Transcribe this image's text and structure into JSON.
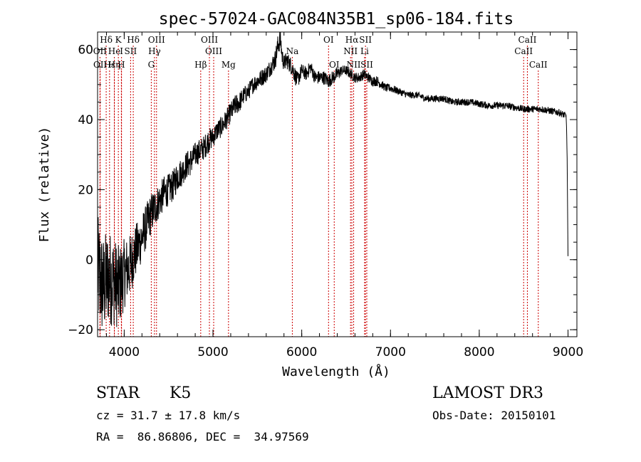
{
  "chart_data": {
    "type": "line",
    "title": "spec-57024-GAC084N35B1_sp06-184.fits",
    "xlabel": "Wavelength (Å)",
    "ylabel": "Flux (relative)",
    "xlim": [
      3700,
      9100
    ],
    "ylim": [
      -22,
      65
    ],
    "xticks": [
      4000,
      5000,
      6000,
      7000,
      8000,
      9000
    ],
    "yticks": [
      -20,
      0,
      20,
      40,
      60
    ],
    "line_color": "#000000",
    "marker_color": "#cc0000",
    "spectrum": {
      "x": [
        3700,
        3760,
        3820,
        3880,
        3940,
        4000,
        4060,
        4120,
        4180,
        4240,
        4300,
        4350,
        4400,
        4450,
        4500,
        4550,
        4600,
        4650,
        4700,
        4750,
        4800,
        4850,
        4900,
        4950,
        5000,
        5050,
        5100,
        5150,
        5200,
        5250,
        5300,
        5350,
        5400,
        5450,
        5500,
        5550,
        5600,
        5650,
        5700,
        5730,
        5760,
        5780,
        5800,
        5830,
        5860,
        5890,
        5920,
        5950,
        6000,
        6050,
        6100,
        6150,
        6200,
        6250,
        6300,
        6350,
        6400,
        6450,
        6500,
        6550,
        6600,
        6650,
        6700,
        6750,
        6800,
        6850,
        6900,
        6950,
        7000,
        7100,
        7200,
        7300,
        7400,
        7500,
        7600,
        7700,
        7800,
        7900,
        8000,
        8100,
        8200,
        8300,
        8400,
        8500,
        8600,
        8700,
        8800,
        8900,
        8980,
        8990,
        9000
      ],
      "y": [
        -3,
        -8,
        -5,
        -6,
        -8,
        -4,
        -2,
        2,
        5,
        9,
        13,
        15,
        17,
        19,
        20,
        21,
        24,
        25,
        27,
        28,
        30,
        31,
        32,
        34,
        35,
        37,
        38,
        40,
        42,
        44,
        45,
        47,
        48,
        50,
        51,
        52,
        53,
        55,
        57,
        61,
        63,
        58,
        56,
        57,
        56,
        55,
        53,
        51,
        54,
        53,
        55,
        52,
        52,
        52,
        51,
        52,
        53,
        54,
        54,
        53,
        52,
        52,
        53,
        52,
        51,
        51,
        50,
        49,
        49,
        48,
        47,
        47,
        46,
        46,
        46,
        45,
        45,
        45,
        44.5,
        44,
        44,
        44,
        43.5,
        43,
        43,
        43,
        42.5,
        42,
        41,
        29,
        1
      ],
      "noise": [
        16,
        15,
        14,
        13,
        12,
        10,
        9,
        8,
        7,
        6.5,
        6,
        5.5,
        5,
        5,
        4.5,
        4.5,
        4.5,
        4,
        4,
        4,
        3.5,
        3.5,
        3.5,
        3.5,
        3,
        3,
        3,
        3,
        3,
        3,
        3,
        2.5,
        2.5,
        2.5,
        2.5,
        2.5,
        2.5,
        2.5,
        3,
        3,
        3,
        2.5,
        2.5,
        2.5,
        2.5,
        2.5,
        2.5,
        2.5,
        2,
        2,
        2,
        2,
        2,
        2,
        2,
        2,
        2,
        1.5,
        1.5,
        1.5,
        1.5,
        1.5,
        1.5,
        1.5,
        1.5,
        1.5,
        1.2,
        1.2,
        1.2,
        1,
        1,
        1,
        1,
        1,
        1,
        1,
        1,
        1,
        1,
        1,
        1,
        1,
        1,
        1,
        1,
        1,
        1,
        1,
        1,
        0,
        0
      ]
    },
    "lines": [
      {
        "label": "Hδ",
        "wavelength": 3797,
        "row": 0
      },
      {
        "label": "OII",
        "wavelength": 3727,
        "row": 1
      },
      {
        "label": "OII",
        "wavelength": 3729,
        "row": 2
      },
      {
        "label": "Hε",
        "wavelength": 3835,
        "row": 2
      },
      {
        "label": "He",
        "wavelength": 3889,
        "row": 1
      },
      {
        "label": "Hη",
        "wavelength": 3889,
        "row": 2
      },
      {
        "label": "K",
        "wavelength": 3934,
        "row": 0
      },
      {
        "label": "H",
        "wavelength": 3968,
        "row": 2
      },
      {
        "label": "I",
        "wavelength": 3970,
        "row": 1
      },
      {
        "label": "SII",
        "wavelength": 4072,
        "row": 1
      },
      {
        "label": "Hδ",
        "wavelength": 4102,
        "row": 0
      },
      {
        "label": "OIII",
        "wavelength": 4364,
        "row": 0
      },
      {
        "label": "Hγ",
        "wavelength": 4341,
        "row": 1
      },
      {
        "label": "G",
        "wavelength": 4305,
        "row": 2
      },
      {
        "label": "OIII",
        "wavelength": 4960,
        "row": 0
      },
      {
        "label": "OIII",
        "wavelength": 5008,
        "row": 1
      },
      {
        "label": "Hβ",
        "wavelength": 4862,
        "row": 2
      },
      {
        "label": "Mg",
        "wavelength": 5175,
        "row": 2
      },
      {
        "label": "Na",
        "wavelength": 5894,
        "row": 1
      },
      {
        "label": "OI",
        "wavelength": 6302,
        "row": 0
      },
      {
        "label": "OI",
        "wavelength": 6366,
        "row": 2
      },
      {
        "label": "Hα",
        "wavelength": 6565,
        "row": 0
      },
      {
        "label": "NII",
        "wavelength": 6550,
        "row": 1
      },
      {
        "label": "NII",
        "wavelength": 6585,
        "row": 2
      },
      {
        "label": "SII",
        "wavelength": 6718,
        "row": 0
      },
      {
        "label": "Li",
        "wavelength": 6708,
        "row": 1
      },
      {
        "label": "SII",
        "wavelength": 6733,
        "row": 2
      },
      {
        "label": "CaII",
        "wavelength": 8542,
        "row": 0
      },
      {
        "label": "CaII",
        "wavelength": 8500,
        "row": 1
      },
      {
        "label": "CaII",
        "wavelength": 8665,
        "row": 2
      }
    ]
  },
  "info": {
    "object_type": "STAR",
    "subclass": "K5",
    "survey": "LAMOST DR3",
    "redshift": "cz = 31.7 ± 17.8 km/s",
    "obs_date": "Obs-Date: 20150101",
    "coords": "RA =  86.86806, DEC =  34.97569"
  }
}
